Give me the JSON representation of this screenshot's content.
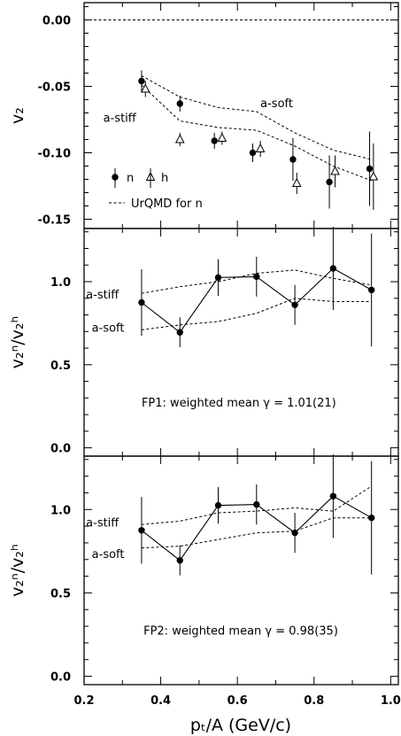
{
  "chart_data": [
    {
      "type": "scatter",
      "panel": "top",
      "ylabel": "v₂",
      "xlim": [
        0.2,
        1.02
      ],
      "ylim": [
        -0.157,
        0.013
      ],
      "yticks": [
        0.0,
        -0.05,
        -0.1,
        -0.15
      ],
      "ytick_labels": [
        "0.00",
        "-0.05",
        "-0.10",
        "-0.15"
      ],
      "zero_line": true,
      "series": [
        {
          "name": "n",
          "marker": "filled-circle",
          "points": [
            {
              "x": 0.35,
              "y": -0.046,
              "err": 0.008
            },
            {
              "x": 0.45,
              "y": -0.063,
              "err": 0.006
            },
            {
              "x": 0.54,
              "y": -0.091,
              "err": 0.006
            },
            {
              "x": 0.64,
              "y": -0.1,
              "err": 0.007
            },
            {
              "x": 0.745,
              "y": -0.105,
              "err": 0.016
            },
            {
              "x": 0.84,
              "y": -0.122,
              "err": 0.02
            },
            {
              "x": 0.945,
              "y": -0.112,
              "err": 0.028
            }
          ]
        },
        {
          "name": "h",
          "marker": "open-triangle",
          "points": [
            {
              "x": 0.36,
              "y": -0.052,
              "err": 0.006
            },
            {
              "x": 0.45,
              "y": -0.09,
              "err": 0.005
            },
            {
              "x": 0.56,
              "y": -0.089,
              "err": 0.005
            },
            {
              "x": 0.66,
              "y": -0.097,
              "err": 0.006
            },
            {
              "x": 0.755,
              "y": -0.123,
              "err": 0.008
            },
            {
              "x": 0.855,
              "y": -0.114,
              "err": 0.012
            },
            {
              "x": 0.955,
              "y": -0.118,
              "err": 0.025
            }
          ]
        }
      ],
      "curves": [
        {
          "name": "a-soft",
          "style": "dashed",
          "points": [
            [
              0.35,
              -0.042
            ],
            [
              0.45,
              -0.058
            ],
            [
              0.55,
              -0.066
            ],
            [
              0.65,
              -0.069
            ],
            [
              0.75,
              -0.085
            ],
            [
              0.85,
              -0.098
            ],
            [
              0.95,
              -0.105
            ]
          ]
        },
        {
          "name": "a-stiff",
          "style": "dashed",
          "points": [
            [
              0.35,
              -0.049
            ],
            [
              0.45,
              -0.076
            ],
            [
              0.55,
              -0.081
            ],
            [
              0.65,
              -0.083
            ],
            [
              0.75,
              -0.095
            ],
            [
              0.85,
              -0.11
            ],
            [
              0.95,
              -0.121
            ]
          ]
        }
      ],
      "annotations": [
        {
          "text": "a-soft",
          "x": 0.66,
          "y": -0.063
        },
        {
          "text": "a-stiff",
          "x": 0.25,
          "y": -0.074
        }
      ],
      "legend": {
        "n_label": "n",
        "h_label": "h",
        "model_label": "UrQMD for n"
      }
    },
    {
      "type": "line",
      "panel": "middle",
      "ylabel": "v₂ⁿ/v₂ʰ",
      "xlim": [
        0.2,
        1.02
      ],
      "ylim": [
        -0.05,
        1.32
      ],
      "yticks": [
        0.0,
        0.5,
        1.0
      ],
      "ytick_labels": [
        "0.0",
        "0.5",
        "1.0"
      ],
      "series": [
        {
          "name": "ratio",
          "marker": "filled-circle",
          "points": [
            {
              "x": 0.35,
              "y": 0.875,
              "err": 0.2
            },
            {
              "x": 0.45,
              "y": 0.695,
              "err": 0.09
            },
            {
              "x": 0.55,
              "y": 1.025,
              "err": 0.11
            },
            {
              "x": 0.65,
              "y": 1.03,
              "err": 0.12
            },
            {
              "x": 0.75,
              "y": 0.86,
              "err": 0.12
            },
            {
              "x": 0.85,
              "y": 1.08,
              "err": 0.25
            },
            {
              "x": 0.95,
              "y": 0.95,
              "err": 0.34
            }
          ]
        }
      ],
      "curves": [
        {
          "name": "a-stiff",
          "style": "dashed",
          "points": [
            [
              0.35,
              0.93
            ],
            [
              0.45,
              0.97
            ],
            [
              0.55,
              1.0
            ],
            [
              0.65,
              1.05
            ],
            [
              0.75,
              1.07
            ],
            [
              0.85,
              1.02
            ],
            [
              0.95,
              0.98
            ]
          ]
        },
        {
          "name": "a-soft",
          "style": "dashed",
          "points": [
            [
              0.35,
              0.71
            ],
            [
              0.45,
              0.74
            ],
            [
              0.55,
              0.76
            ],
            [
              0.65,
              0.81
            ],
            [
              0.75,
              0.9
            ],
            [
              0.85,
              0.88
            ],
            [
              0.95,
              0.88
            ]
          ]
        }
      ],
      "annotations": [
        {
          "text": "a-stiff",
          "x": 0.205,
          "y": 0.92
        },
        {
          "text": "a-soft",
          "x": 0.22,
          "y": 0.72
        },
        {
          "text": "FP1:  weighted mean  γ  = 1.01(21)",
          "x": 0.35,
          "y": 0.27
        }
      ]
    },
    {
      "type": "line",
      "panel": "bottom",
      "ylabel": "v₂ⁿ/v₂ʰ",
      "xlabel": "pₜ/A  (GeV/c)",
      "xlim": [
        0.2,
        1.02
      ],
      "ylim": [
        -0.05,
        1.32
      ],
      "xticks": [
        0.2,
        0.4,
        0.6,
        0.8,
        1.0
      ],
      "xtick_labels": [
        "0.2",
        "0.4",
        "0.6",
        "0.8",
        "1.0"
      ],
      "yticks": [
        0.0,
        0.5,
        1.0
      ],
      "ytick_labels": [
        "0.0",
        "0.5",
        "1.0"
      ],
      "series": [
        {
          "name": "ratio",
          "marker": "filled-circle",
          "points": [
            {
              "x": 0.35,
              "y": 0.875,
              "err": 0.2
            },
            {
              "x": 0.45,
              "y": 0.695,
              "err": 0.09
            },
            {
              "x": 0.55,
              "y": 1.025,
              "err": 0.11
            },
            {
              "x": 0.65,
              "y": 1.03,
              "err": 0.12
            },
            {
              "x": 0.75,
              "y": 0.86,
              "err": 0.12
            },
            {
              "x": 0.85,
              "y": 1.08,
              "err": 0.25
            },
            {
              "x": 0.95,
              "y": 0.95,
              "err": 0.34
            }
          ]
        }
      ],
      "curves": [
        {
          "name": "a-stiff",
          "style": "dashed",
          "points": [
            [
              0.35,
              0.91
            ],
            [
              0.45,
              0.93
            ],
            [
              0.55,
              0.98
            ],
            [
              0.65,
              0.99
            ],
            [
              0.75,
              1.01
            ],
            [
              0.85,
              0.99
            ],
            [
              0.95,
              1.14
            ]
          ]
        },
        {
          "name": "a-soft",
          "style": "dashed",
          "points": [
            [
              0.35,
              0.77
            ],
            [
              0.45,
              0.78
            ],
            [
              0.55,
              0.82
            ],
            [
              0.65,
              0.86
            ],
            [
              0.75,
              0.87
            ],
            [
              0.85,
              0.95
            ],
            [
              0.95,
              0.95
            ]
          ]
        }
      ],
      "annotations": [
        {
          "text": "a-stiff",
          "x": 0.205,
          "y": 0.92
        },
        {
          "text": "a-soft",
          "x": 0.22,
          "y": 0.73
        },
        {
          "text": "FP2:  weighted mean  γ  = 0.98(35)",
          "x": 0.355,
          "y": 0.27
        }
      ]
    }
  ]
}
